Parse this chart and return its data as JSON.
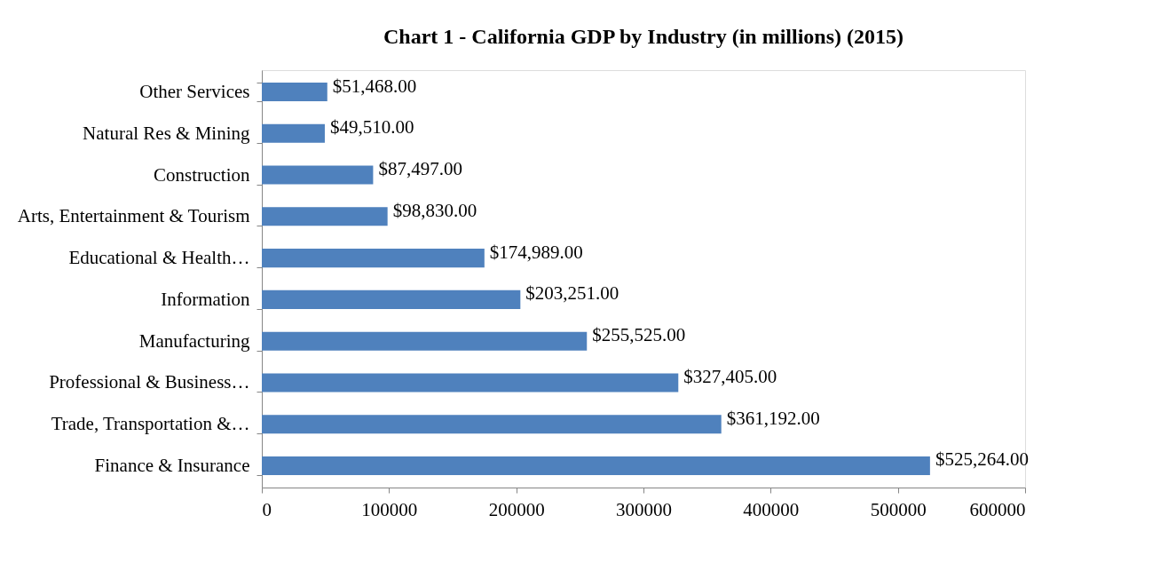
{
  "chart_data": {
    "type": "bar",
    "orientation": "horizontal",
    "title": "Chart 1 - California GDP by Industry (in millions) (2015)",
    "categories": [
      "Other Services",
      "Natural Res & Mining",
      "Construction",
      "Arts, Entertainment & Tourism",
      "Educational & Health…",
      "Information",
      "Manufacturing",
      "Professional & Business…",
      "Trade, Transportation &…",
      "Finance & Insurance"
    ],
    "values": [
      51468,
      49510,
      87497,
      98830,
      174989,
      203251,
      255525,
      327405,
      361192,
      525264
    ],
    "value_labels": [
      "$51,468.00",
      "$49,510.00",
      "$87,497.00",
      "$98,830.00",
      "$174,989.00",
      "$203,251.00",
      "$255,525.00",
      "$327,405.00",
      "$361,192.00",
      "$525,264.00"
    ],
    "color": "#4f81bd",
    "xlim": [
      0,
      600000
    ],
    "xticks": [
      0,
      100000,
      200000,
      300000,
      400000,
      500000,
      600000
    ],
    "grid": false
  }
}
